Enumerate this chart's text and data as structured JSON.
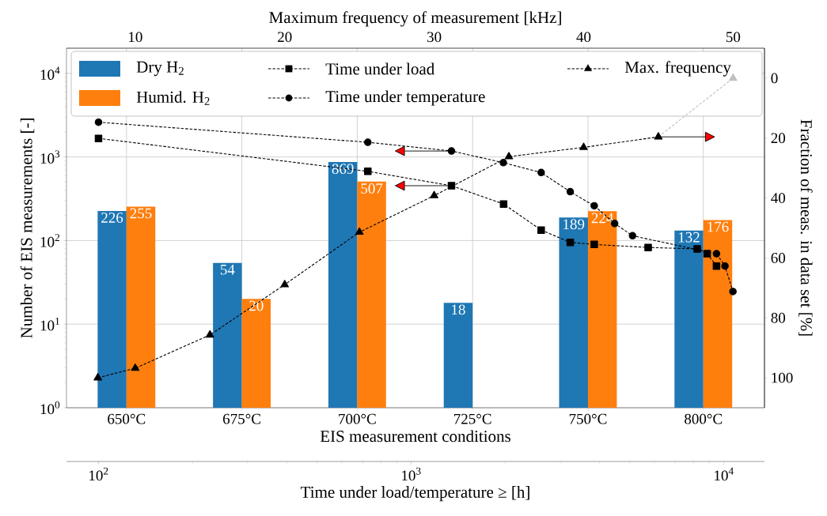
{
  "chart_data": [
    {
      "type": "bar",
      "xlabel": "EIS measurement conditions",
      "ylabel": "Number of EIS measurements [-]",
      "categories": [
        "650°C",
        "675°C",
        "700°C",
        "725°C",
        "750°C",
        "800°C"
      ],
      "series": [
        {
          "name": "Dry H$_{2}$",
          "color": "#1f77b4",
          "values": [
            226,
            54,
            869,
            18,
            189,
            132
          ]
        },
        {
          "name": "Humid. H$_{2}$",
          "color": "#ff7f0e",
          "values": [
            255,
            20,
            507,
            null,
            224,
            176
          ]
        }
      ],
      "ylim": [
        1,
        20000
      ],
      "yticks": [
        {
          "value": 1,
          "label": "10$^{0}$"
        },
        {
          "value": 10,
          "label": "10$^{1}$"
        },
        {
          "value": 100,
          "label": "10$^{2}$"
        },
        {
          "value": 1000,
          "label": "10$^{3}$"
        },
        {
          "value": 10000,
          "label": "10$^{4}$"
        }
      ],
      "log": "y",
      "grid": true,
      "legend": "top",
      "data_labels": true
    },
    {
      "type": "line",
      "xlabel": "Time under load/temperature ≥ [h]",
      "ylabel": "Fraction of meas. in data set [%]",
      "series": [
        {
          "name": "Time under load",
          "color": "#000000",
          "marker": "square",
          "line_style": "dashed",
          "x": [
            100,
            727,
            1346,
            1976,
            2606,
            3228,
            3853,
            5730,
            8225,
            8850,
            9480
          ],
          "values": [
            20.1,
            31.1,
            35.9,
            42.0,
            50.7,
            54.8,
            55.5,
            56.5,
            57.0,
            58.6,
            62.7
          ]
        },
        {
          "name": "Time under temperature",
          "color": "#000000",
          "marker": "circle",
          "line_style": "dashed",
          "x": [
            100,
            727,
            1346,
            1972,
            2606,
            3228,
            3853,
            4477,
            5108,
            9480,
            10090,
            10700
          ],
          "values": [
            14.7,
            21.4,
            24.3,
            28.2,
            31.5,
            37.9,
            42.6,
            48.5,
            52.6,
            58.6,
            62.7,
            71.2
          ]
        }
      ],
      "xlim": [
        79,
        13500
      ],
      "xticks": [
        {
          "value": 100,
          "label": "10$^{2}$"
        },
        {
          "value": 1000,
          "label": "10$^{3}$"
        },
        {
          "value": 10000,
          "label": "10$^{4}$"
        }
      ],
      "ylim": [
        110,
        -10
      ],
      "yticks": [
        0,
        20,
        40,
        60,
        80,
        100
      ],
      "log": "x",
      "legend": "top"
    },
    {
      "type": "line",
      "xlabel": "Maximum frequency of measurement [kHz]",
      "series": [
        {
          "color": "#c0c0c0",
          "marker": "triangle",
          "line_style": "dashed",
          "x": [
            45,
            50
          ],
          "values": [
            19.6,
            0
          ]
        },
        {
          "name": "Max. frequency",
          "color": "#000000",
          "marker": "triangle",
          "line_style": "dashed",
          "x": [
            7.5,
            10,
            15,
            20,
            25,
            30,
            35,
            40,
            45
          ],
          "values": [
            100,
            96.8,
            85.7,
            68.9,
            51.4,
            39.2,
            26.2,
            23.1,
            19.6
          ]
        }
      ],
      "xlim": [
        5.4,
        52.1
      ],
      "xticks": [
        10,
        20,
        30,
        40,
        50
      ],
      "ylim": [
        110,
        -10
      ],
      "tick_labels": "x",
      "legend": "top"
    }
  ]
}
